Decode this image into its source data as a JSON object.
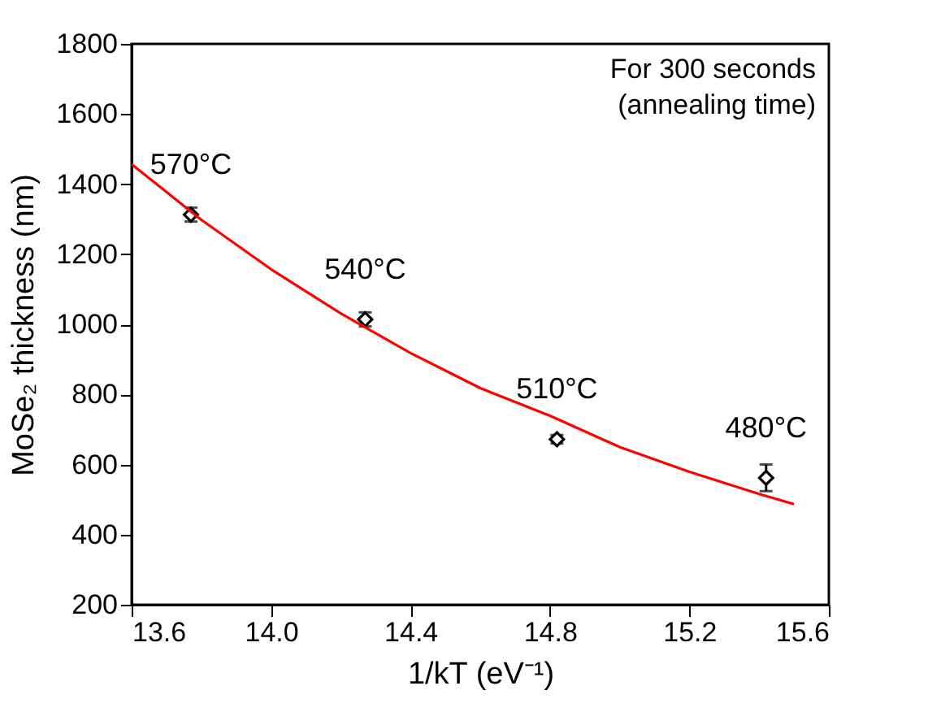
{
  "chart_data": {
    "type": "scatter",
    "xlabel": "1/kT (eV⁻¹)",
    "ylabel": "MoSe₂ thickness (nm)",
    "xlim": [
      13.6,
      15.6
    ],
    "xticks": [
      13.6,
      {
        "value": 14,
        "label": "14.0"
      },
      14.4,
      14.8,
      15.2,
      15.6
    ],
    "ylim": [
      200,
      1800
    ],
    "yticks": [
      200,
      400,
      600,
      800,
      1000,
      1200,
      1400,
      1600,
      1800
    ],
    "grid": false,
    "series": [
      {
        "color": "#000000",
        "marker": "diamond",
        "x": [
          13.77,
          14.27,
          14.82,
          15.42
        ],
        "values": [
          1313,
          1014,
          672,
          562
        ],
        "errors": [
          20,
          20,
          12,
          38
        ]
      },
      {
        "type": "line",
        "color": "#ff0000",
        "marker": "none",
        "line_style": "solid",
        "x": [
          13.6,
          13.8,
          14.0,
          14.2,
          14.4,
          14.6,
          14.8,
          15.0,
          15.2,
          15.4,
          15.5
        ],
        "values": [
          1457,
          1298,
          1157,
          1031,
          918,
          818,
          739,
          650,
          579,
          516,
          487
        ]
      }
    ],
    "annotations": [
      {
        "text": "570°C",
        "x": 13.77,
        "y": 1313
      },
      {
        "text": "540°C",
        "x": 14.27,
        "y": 1014
      },
      {
        "text": "510°C",
        "x": 14.82,
        "y": 672
      },
      {
        "text": "480°C",
        "x": 15.42,
        "y": 562
      },
      "For 300 seconds\n(annealing time)"
    ]
  }
}
